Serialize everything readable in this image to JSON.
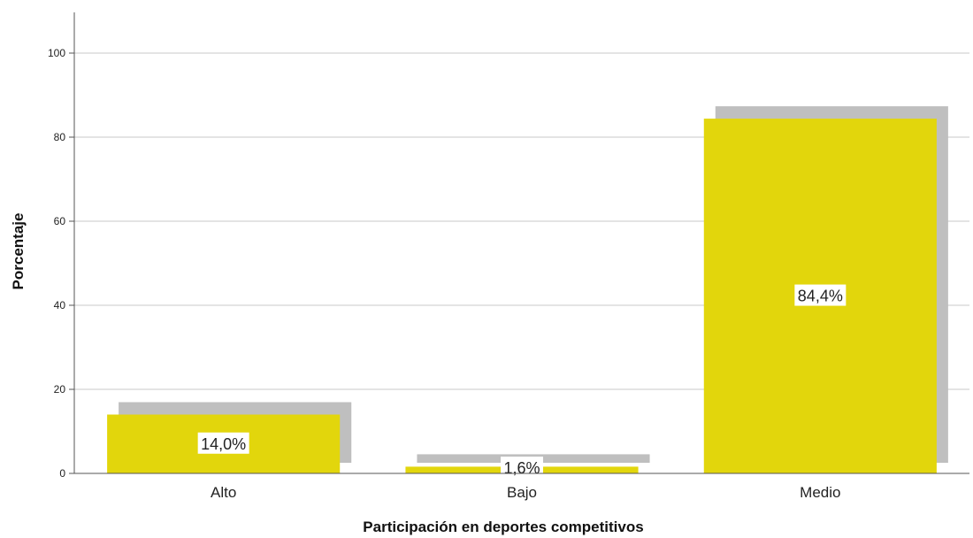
{
  "chart_data": {
    "type": "bar",
    "categories": [
      "Alto",
      "Bajo",
      "Medio"
    ],
    "values": [
      14.0,
      1.6,
      84.4
    ],
    "data_labels": [
      "14,0%",
      "1,6%",
      "84,4%"
    ],
    "xlabel": "Participación en deportes competitivos",
    "ylabel": "Porcentaje",
    "ylim": [
      0,
      110
    ],
    "yticks": [
      0,
      20,
      40,
      60,
      80,
      100
    ],
    "grid": "horizontal",
    "bar_color": "#e2d60c",
    "shadow_color": "#bfbfbf",
    "grid_color": "#c8c8c8"
  }
}
